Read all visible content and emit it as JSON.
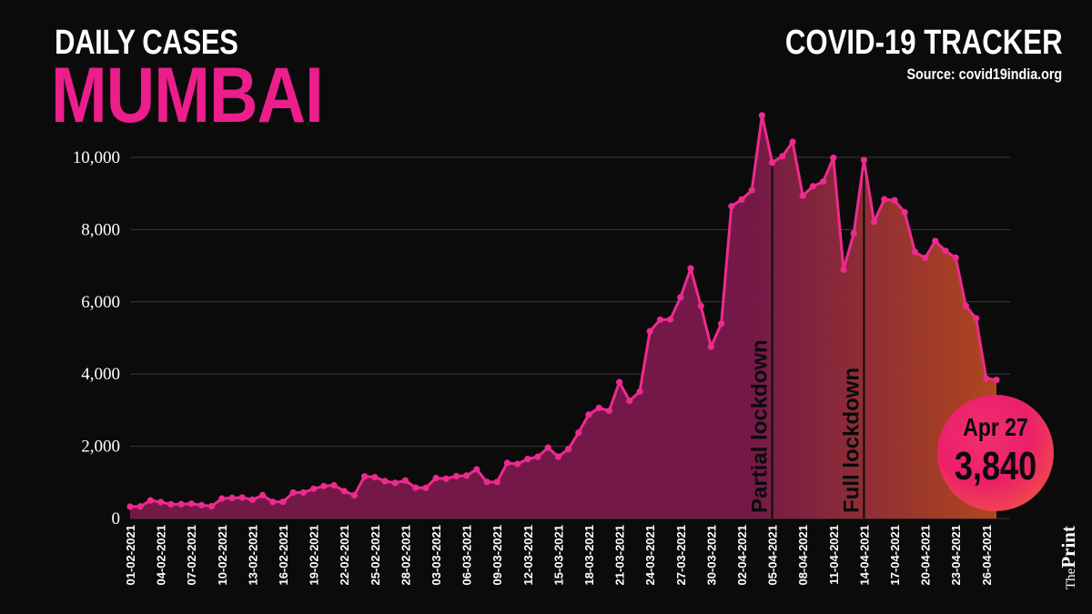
{
  "header": {
    "kicker": "DAILY CASES",
    "city": "MUMBAI",
    "tracker": "COVID-19 TRACKER",
    "source": "Source: covid19india.org"
  },
  "callout": {
    "date": "Apr 27",
    "value": "3,840"
  },
  "logo": {
    "the": "The",
    "print": "Print"
  },
  "colors": {
    "background": "#0b0b0c",
    "accent": "#ec1e8b",
    "line": "#ee2a8e",
    "area_start": "#7a1a4a",
    "area_end": "#b84a1e",
    "grid": "#3a3a3a",
    "callout_start": "#ec1f6a",
    "callout_end": "#f0633a"
  },
  "chart_data": {
    "type": "area",
    "title": "",
    "xlabel": "",
    "ylabel": "",
    "ylim": [
      0,
      10000
    ],
    "yticks": [
      0,
      2000,
      4000,
      6000,
      8000,
      10000
    ],
    "ytick_labels": [
      "0",
      "2,000",
      "4,000",
      "6,000",
      "8,000",
      "10,000"
    ],
    "grid": "horizontal",
    "x": [
      "01-02-2021",
      "02-02-2021",
      "03-02-2021",
      "04-02-2021",
      "05-02-2021",
      "06-02-2021",
      "07-02-2021",
      "08-02-2021",
      "09-02-2021",
      "10-02-2021",
      "11-02-2021",
      "12-02-2021",
      "13-02-2021",
      "14-02-2021",
      "15-02-2021",
      "16-02-2021",
      "17-02-2021",
      "18-02-2021",
      "19-02-2021",
      "20-02-2021",
      "21-02-2021",
      "22-02-2021",
      "23-02-2021",
      "24-02-2021",
      "25-02-2021",
      "26-02-2021",
      "27-02-2021",
      "28-02-2021",
      "01-03-2021",
      "02-03-2021",
      "03-03-2021",
      "04-03-2021",
      "05-03-2021",
      "06-03-2021",
      "07-03-2021",
      "08-03-2021",
      "09-03-2021",
      "10-03-2021",
      "11-03-2021",
      "12-03-2021",
      "13-03-2021",
      "14-03-2021",
      "15-03-2021",
      "16-03-2021",
      "17-03-2021",
      "18-03-2021",
      "19-03-2021",
      "20-03-2021",
      "21-03-2021",
      "22-03-2021",
      "23-03-2021",
      "24-03-2021",
      "25-03-2021",
      "26-03-2021",
      "27-03-2021",
      "28-03-2021",
      "29-03-2021",
      "30-03-2021",
      "31-03-2021",
      "01-04-2021",
      "02-04-2021",
      "03-04-2021",
      "04-04-2021",
      "05-04-2021",
      "06-04-2021",
      "07-04-2021",
      "08-04-2021",
      "09-04-2021",
      "10-04-2021",
      "11-04-2021",
      "12-04-2021",
      "13-04-2021",
      "14-04-2021",
      "15-04-2021",
      "16-04-2021",
      "17-04-2021",
      "18-04-2021",
      "19-04-2021",
      "20-04-2021",
      "21-04-2021",
      "22-04-2021",
      "23-04-2021",
      "24-04-2021",
      "25-04-2021",
      "26-04-2021",
      "27-04-2021"
    ],
    "x_tick_labels": [
      "01-02-2021",
      "04-02-2021",
      "07-02-2021",
      "10-02-2021",
      "13-02-2021",
      "16-02-2021",
      "19-02-2021",
      "22-02-2021",
      "25-02-2021",
      "28-02-2021",
      "03-03-2021",
      "06-03-2021",
      "09-03-2021",
      "12-03-2021",
      "15-03-2021",
      "18-03-2021",
      "21-03-2021",
      "24-03-2021",
      "27-03-2021",
      "30-03-2021",
      "02-04-2021",
      "05-04-2021",
      "08-04-2021",
      "11-04-2021",
      "14-04-2021",
      "17-04-2021",
      "20-04-2021",
      "23-04-2021",
      "26-04-2021"
    ],
    "series": [
      {
        "values": [
          328,
          334,
          500,
          455,
          395,
          396,
          410,
          370,
          340,
          551,
          570,
          580,
          520,
          645,
          460,
          461,
          720,
          720,
          823,
          897,
          921,
          761,
          643,
          1167,
          1145,
          1035,
          987,
          1051,
          855,
          849,
          1121,
          1103,
          1173,
          1188,
          1360,
          1012,
          1012,
          1539,
          1508,
          1646,
          1708,
          1962,
          1712,
          1922,
          2377,
          2877,
          3062,
          2982,
          3775,
          3260,
          3514,
          5185,
          5504,
          5513,
          6123,
          6923,
          5888,
          4758,
          5394,
          8646,
          8832,
          9090,
          11163,
          9857,
          10030,
          10428,
          8938,
          9200,
          9327,
          9989,
          6893,
          7898,
          9925,
          8217,
          8839,
          8811,
          8479,
          7381,
          7214,
          7684,
          7410,
          7221,
          5888,
          5542,
          3876,
          3840
        ]
      }
    ],
    "annotations": [
      {
        "label": "Partial lockdown",
        "x": "05-04-2021"
      },
      {
        "label": "Full lockdown",
        "x": "14-04-2021"
      }
    ]
  }
}
